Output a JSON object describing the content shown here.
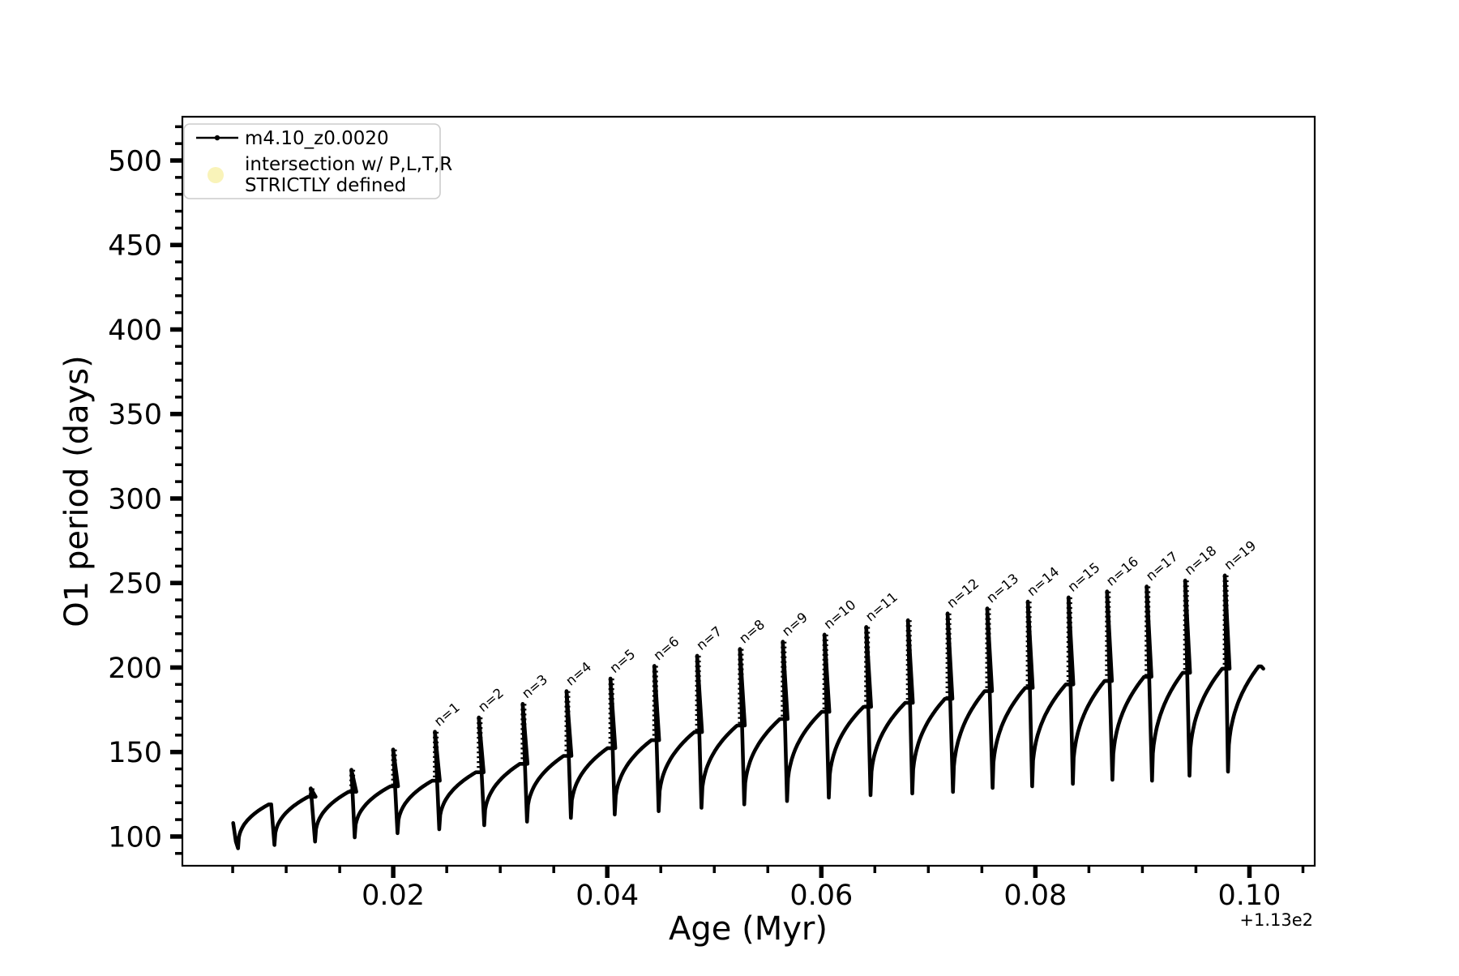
{
  "window": {
    "background": "#ffffff"
  },
  "chart_data": {
    "type": "line",
    "title": "",
    "xlabel": "Age (Myr)",
    "ylabel": "O1 period (days)",
    "x_axis_offset_label": "+1.13e2",
    "x_offset_value": 113,
    "xlim": [
      0.0003,
      0.1061
    ],
    "ylim": [
      82.7,
      525.9
    ],
    "x_major_ticks": [
      0.02,
      0.04,
      0.06,
      0.08,
      0.1
    ],
    "x_major_tick_labels": [
      "0.02",
      "0.04",
      "0.06",
      "0.08",
      "0.10"
    ],
    "x_minor_ticks_start": 0.005,
    "x_minor_ticks_step": 0.005,
    "x_minor_ticks_end": 0.105,
    "y_major_ticks": [
      100,
      150,
      200,
      250,
      300,
      350,
      400,
      450,
      500
    ],
    "y_minor_ticks_start": 90,
    "y_minor_ticks_step": 10,
    "y_minor_ticks_end": 520,
    "grid": false,
    "line_color": "#000000",
    "intersection_marker_color": "#f9f3b9",
    "legend": {
      "position": "upper-left",
      "entries": [
        {
          "marker": "line-dot",
          "label": "m4.10_z0.0020",
          "color": "#000000"
        },
        {
          "marker": "circle",
          "label_line1": "intersection w/ P,L,T,R",
          "label_line2": "STRICTLY defined",
          "color": "#f9f3b9"
        }
      ]
    },
    "series_name": "m4.10_z0.0020",
    "pulse_label_count": 19,
    "lead_in": [
      [
        0.00505,
        108
      ],
      [
        0.0053,
        97
      ],
      [
        0.0055,
        93
      ]
    ],
    "cycles": [
      {
        "x0": 0.0055,
        "dip": 93.0,
        "xs": 0.0086,
        "plateau": 119.0,
        "peak": 119.5,
        "label": null
      },
      {
        "x0": 0.0089,
        "dip": 95.0,
        "xs": 0.0123,
        "plateau": 123.5,
        "peak": 128.5,
        "label": null
      },
      {
        "x0": 0.0127,
        "dip": 97.0,
        "xs": 0.0161,
        "plateau": 126.5,
        "peak": 139.5,
        "label": null
      },
      {
        "x0": 0.0164,
        "dip": 99.5,
        "xs": 0.02,
        "plateau": 129.7,
        "peak": 151.5,
        "label": null
      },
      {
        "x0": 0.0204,
        "dip": 102.0,
        "xs": 0.0239,
        "plateau": 133.0,
        "peak": 162.0,
        "label": "n=1"
      },
      {
        "x0": 0.0243,
        "dip": 104.3,
        "xs": 0.028,
        "plateau": 138.0,
        "peak": 170.5,
        "label": "n=2"
      },
      {
        "x0": 0.0285,
        "dip": 106.7,
        "xs": 0.0321,
        "plateau": 143.0,
        "peak": 178.5,
        "label": "n=3"
      },
      {
        "x0": 0.0325,
        "dip": 108.8,
        "xs": 0.0362,
        "plateau": 147.7,
        "peak": 186.0,
        "label": "n=4"
      },
      {
        "x0": 0.0366,
        "dip": 111.0,
        "xs": 0.0403,
        "plateau": 152.3,
        "peak": 193.5,
        "label": "n=5"
      },
      {
        "x0": 0.0407,
        "dip": 113.0,
        "xs": 0.0444,
        "plateau": 157.0,
        "peak": 201.0,
        "label": "n=6"
      },
      {
        "x0": 0.0448,
        "dip": 115.0,
        "xs": 0.0484,
        "plateau": 161.8,
        "peak": 207.0,
        "label": "n=7"
      },
      {
        "x0": 0.0488,
        "dip": 117.0,
        "xs": 0.0524,
        "plateau": 165.7,
        "peak": 211.0,
        "label": "n=8"
      },
      {
        "x0": 0.0528,
        "dip": 119.0,
        "xs": 0.0564,
        "plateau": 169.5,
        "peak": 215.3,
        "label": "n=9"
      },
      {
        "x0": 0.0568,
        "dip": 121.0,
        "xs": 0.0603,
        "plateau": 173.8,
        "peak": 219.5,
        "label": "n=10"
      },
      {
        "x0": 0.0607,
        "dip": 123.0,
        "xs": 0.0642,
        "plateau": 176.7,
        "peak": 224.0,
        "label": "n=11"
      },
      {
        "x0": 0.0646,
        "dip": 124.5,
        "xs": 0.0681,
        "plateau": 179.1,
        "peak": 228.0,
        "label": null
      },
      {
        "x0": 0.0685,
        "dip": 125.5,
        "xs": 0.0718,
        "plateau": 181.5,
        "peak": 232.0,
        "label": "n=12"
      },
      {
        "x0": 0.0723,
        "dip": 126.4,
        "xs": 0.0755,
        "plateau": 186.0,
        "peak": 235.0,
        "label": "n=13"
      },
      {
        "x0": 0.076,
        "dip": 128.8,
        "xs": 0.0793,
        "plateau": 188.0,
        "peak": 239.0,
        "label": "n=14"
      },
      {
        "x0": 0.0797,
        "dip": 129.7,
        "xs": 0.0831,
        "plateau": 190.0,
        "peak": 241.5,
        "label": "n=15"
      },
      {
        "x0": 0.0835,
        "dip": 131.2,
        "xs": 0.0867,
        "plateau": 192.0,
        "peak": 245.0,
        "label": "n=16"
      },
      {
        "x0": 0.0872,
        "dip": 133.6,
        "xs": 0.0904,
        "plateau": 194.5,
        "peak": 248.0,
        "label": "n=17"
      },
      {
        "x0": 0.0909,
        "dip": 133.0,
        "xs": 0.094,
        "plateau": 196.9,
        "peak": 251.5,
        "label": "n=18"
      },
      {
        "x0": 0.0944,
        "dip": 136.0,
        "xs": 0.0977,
        "plateau": 199.3,
        "peak": 254.5,
        "label": "n=19"
      },
      {
        "x0": 0.098,
        "dip": 138.4,
        "xs": 0.1011,
        "plateau": 200.7,
        "peak": 200.7,
        "label": null
      }
    ],
    "tail": [
      [
        0.1013,
        199.3
      ]
    ]
  }
}
